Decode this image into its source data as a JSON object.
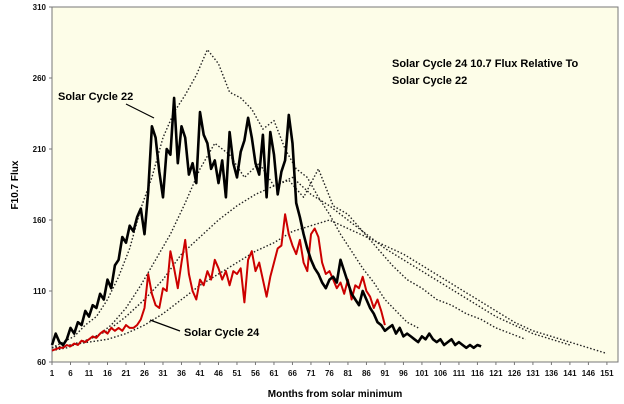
{
  "chart_data": {
    "type": "line",
    "title_lines": [
      "Solar Cycle 24 10.7 Flux  Relative To",
      "Solar Cycle 22"
    ],
    "xlabel": "Months from solar minimum",
    "ylabel": "F10.7 Flux",
    "xlim": [
      1,
      154
    ],
    "ylim": [
      60,
      310
    ],
    "x_ticks": [
      1,
      6,
      11,
      16,
      21,
      26,
      31,
      36,
      41,
      46,
      51,
      56,
      61,
      66,
      71,
      76,
      81,
      86,
      91,
      96,
      101,
      106,
      111,
      116,
      121,
      126,
      131,
      136,
      141,
      146,
      151
    ],
    "y_ticks": [
      60,
      110,
      160,
      210,
      260,
      310
    ],
    "grid": false,
    "legend": "none",
    "colors": {
      "plot_bg": "#fdfde8",
      "cycle22": "#000000",
      "cycle24": "#cc0000",
      "other_cycles": "#222222"
    },
    "annotations": [
      {
        "label": "Solar Cycle 22",
        "series": "cycle22"
      },
      {
        "label": "Solar Cycle 24",
        "series": "cycle24"
      }
    ],
    "series": [
      {
        "name": "Solar Cycle 22",
        "id": "cycle22",
        "style": "solid-thick",
        "x": [
          1,
          2,
          3,
          4,
          5,
          6,
          7,
          8,
          9,
          10,
          11,
          12,
          13,
          14,
          15,
          16,
          17,
          18,
          19,
          20,
          21,
          22,
          23,
          24,
          25,
          26,
          27,
          28,
          29,
          30,
          31,
          32,
          33,
          34,
          35,
          36,
          37,
          38,
          39,
          40,
          41,
          42,
          43,
          44,
          45,
          46,
          47,
          48,
          49,
          50,
          51,
          52,
          53,
          54,
          55,
          56,
          57,
          58,
          59,
          60,
          61,
          62,
          63,
          64,
          65,
          66,
          67,
          68,
          69,
          70,
          71,
          72,
          73,
          74,
          75,
          76,
          77,
          78,
          79,
          80,
          81,
          82,
          83,
          84,
          85,
          86,
          87,
          88,
          89,
          90,
          91,
          92,
          93,
          94,
          95,
          96,
          97,
          98,
          99,
          100,
          101,
          102,
          103,
          104,
          105,
          106,
          107,
          108,
          109,
          110,
          111,
          112,
          113,
          114,
          115,
          116,
          117
        ],
        "values": [
          72,
          80,
          74,
          72,
          76,
          84,
          80,
          88,
          86,
          96,
          92,
          100,
          98,
          108,
          104,
          118,
          112,
          128,
          132,
          148,
          144,
          156,
          152,
          162,
          168,
          150,
          180,
          226,
          218,
          194,
          176,
          210,
          206,
          246,
          200,
          226,
          218,
          192,
          200,
          186,
          236,
          220,
          214,
          196,
          202,
          186,
          202,
          176,
          222,
          200,
          190,
          208,
          216,
          232,
          218,
          200,
          192,
          220,
          176,
          222,
          206,
          178,
          194,
          202,
          234,
          214,
          172,
          162,
          150,
          140,
          132,
          126,
          122,
          116,
          112,
          118,
          120,
          116,
          132,
          124,
          116,
          108,
          104,
          100,
          110,
          104,
          98,
          94,
          88,
          86,
          82,
          84,
          86,
          80,
          84,
          78,
          80,
          78,
          76,
          74,
          78,
          76,
          80,
          76,
          74,
          76,
          72,
          74,
          76,
          72,
          74,
          72,
          70,
          72,
          70,
          72,
          71
        ]
      },
      {
        "name": "Solar Cycle 24",
        "id": "cycle24",
        "style": "solid-red",
        "x": [
          1,
          2,
          3,
          4,
          5,
          6,
          7,
          8,
          9,
          10,
          11,
          12,
          13,
          14,
          15,
          16,
          17,
          18,
          19,
          20,
          21,
          22,
          23,
          24,
          25,
          26,
          27,
          28,
          29,
          30,
          31,
          32,
          33,
          34,
          35,
          36,
          37,
          38,
          39,
          40,
          41,
          42,
          43,
          44,
          45,
          46,
          47,
          48,
          49,
          50,
          51,
          52,
          53,
          54,
          55,
          56,
          57,
          58,
          59,
          60,
          61,
          62,
          63,
          64,
          65,
          66,
          67,
          68,
          69,
          70,
          71,
          72,
          73,
          74,
          75,
          76,
          77,
          78,
          79,
          80,
          81,
          82,
          83,
          84,
          85,
          86,
          87,
          88,
          89,
          90,
          91
        ],
        "values": [
          68,
          69,
          70,
          70,
          72,
          71,
          73,
          72,
          75,
          74,
          76,
          78,
          77,
          80,
          82,
          80,
          84,
          82,
          84,
          82,
          86,
          84,
          84,
          86,
          90,
          98,
          122,
          108,
          100,
          98,
          112,
          110,
          138,
          126,
          112,
          130,
          146,
          122,
          110,
          104,
          118,
          114,
          124,
          118,
          132,
          126,
          118,
          124,
          114,
          124,
          122,
          126,
          102,
          132,
          138,
          124,
          130,
          118,
          106,
          120,
          130,
          140,
          142,
          164,
          150,
          142,
          136,
          146,
          130,
          124,
          150,
          154,
          148,
          130,
          122,
          124,
          118,
          112,
          116,
          108,
          118,
          104,
          114,
          112,
          120,
          110,
          106,
          98,
          104,
          96,
          86
        ]
      },
      {
        "name": "",
        "id": "other1",
        "style": "dotted",
        "x": [
          1,
          4,
          7,
          10,
          13,
          16,
          19,
          22,
          25,
          28,
          31,
          34,
          37,
          40,
          43,
          46,
          49,
          52,
          55,
          58,
          61,
          64,
          67,
          70,
          73,
          76,
          79,
          82,
          85,
          88,
          91,
          94,
          97,
          100
        ],
        "values": [
          70,
          74,
          78,
          86,
          92,
          104,
          120,
          140,
          168,
          190,
          218,
          236,
          248,
          262,
          280,
          270,
          250,
          246,
          238,
          224,
          230,
          210,
          196,
          190,
          176,
          164,
          150,
          138,
          126,
          116,
          104,
          96,
          88,
          84
        ]
      },
      {
        "name": "",
        "id": "other2",
        "style": "dotted",
        "x": [
          1,
          5,
          9,
          13,
          17,
          21,
          25,
          29,
          33,
          37,
          41,
          45,
          49,
          53,
          57,
          61,
          65,
          69,
          73,
          77,
          81,
          85,
          89,
          93,
          97,
          101,
          105,
          109,
          113,
          117,
          121,
          125,
          129
        ],
        "values": [
          68,
          70,
          74,
          78,
          86,
          98,
          114,
          132,
          150,
          172,
          196,
          214,
          206,
          190,
          200,
          184,
          188,
          176,
          196,
          170,
          164,
          152,
          140,
          128,
          118,
          112,
          104,
          100,
          94,
          90,
          84,
          80,
          76
        ]
      },
      {
        "name": "",
        "id": "other3",
        "style": "dotted",
        "x": [
          1,
          6,
          11,
          16,
          21,
          26,
          31,
          36,
          41,
          46,
          51,
          56,
          61,
          66,
          71,
          76,
          81,
          86,
          91,
          96,
          101,
          106,
          111,
          116,
          121,
          126,
          131,
          136,
          141
        ],
        "values": [
          70,
          72,
          76,
          82,
          92,
          104,
          118,
          136,
          148,
          160,
          170,
          178,
          184,
          190,
          178,
          170,
          160,
          150,
          140,
          132,
          124,
          116,
          108,
          100,
          92,
          86,
          80,
          76,
          72
        ]
      },
      {
        "name": "",
        "id": "other4",
        "style": "dotted",
        "x": [
          1,
          6,
          11,
          16,
          21,
          26,
          31,
          36,
          41,
          46,
          51,
          56,
          61,
          66,
          71,
          76,
          81,
          86,
          91,
          96,
          101,
          106,
          111,
          116,
          121,
          126,
          131,
          136,
          141,
          146,
          151
        ],
        "values": [
          70,
          72,
          74,
          76,
          80,
          86,
          94,
          104,
          114,
          122,
          130,
          138,
          144,
          152,
          156,
          160,
          154,
          148,
          142,
          136,
          128,
          120,
          112,
          104,
          96,
          88,
          82,
          78,
          74,
          70,
          66
        ]
      }
    ]
  }
}
